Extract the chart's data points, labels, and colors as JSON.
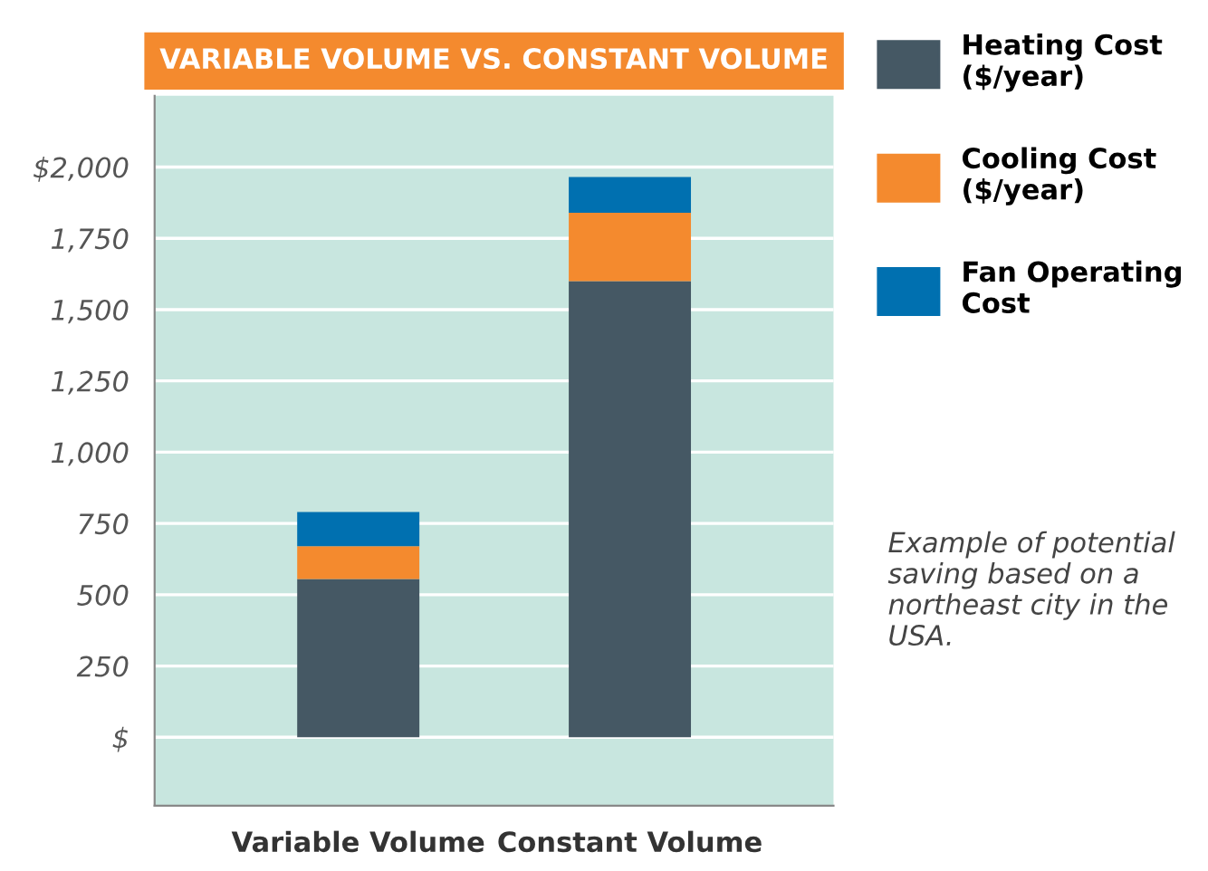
{
  "chart_data": {
    "type": "bar",
    "stacked": true,
    "title": "VARIABLE VOLUME VS. CONSTANT VOLUME",
    "categories": [
      "Variable Volume",
      "Constant Volume"
    ],
    "series": [
      {
        "name": "Heating Cost\n($/year)",
        "color": "#455864",
        "values": [
          555,
          1600
        ]
      },
      {
        "name": "Cooling Cost\n($/year)",
        "color": "#f48a2e",
        "values": [
          115,
          240
        ]
      },
      {
        "name": "Fan Operating\nCost",
        "color": "#0070b0",
        "values": [
          120,
          125
        ]
      }
    ],
    "ylim": [
      -240,
      2250
    ],
    "yticks": [
      {
        "value": 0,
        "label": "$"
      },
      250,
      500,
      750,
      {
        "value": 1000,
        "label": "1,000"
      },
      {
        "value": 1250,
        "label": "1,250"
      },
      {
        "value": 1500,
        "label": "1,500"
      },
      {
        "value": 1750,
        "label": "1,750"
      },
      {
        "value": 2000,
        "label": "$2,000"
      }
    ],
    "grid": "y",
    "legend": "top right",
    "annotations": [
      "Example of potential saving based on a northeast city in the USA."
    ]
  }
}
